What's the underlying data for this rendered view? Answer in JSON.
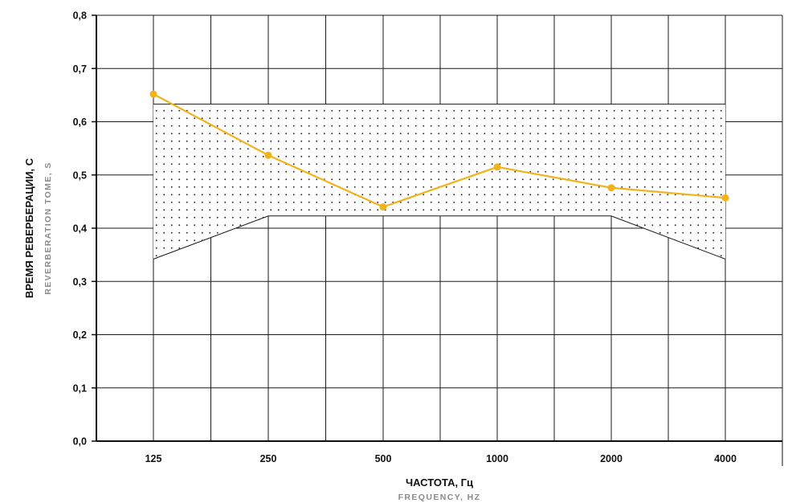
{
  "chart_data": {
    "type": "line",
    "categories": [
      "125",
      "250",
      "500",
      "1000",
      "2000",
      "4000"
    ],
    "y_tick_labels": [
      "0,0",
      "0,1",
      "0,2",
      "0,3",
      "0,4",
      "0,5",
      "0,6",
      "0,7",
      "0,8"
    ],
    "ylim": [
      0,
      0.8
    ],
    "grid": true,
    "series": [
      {
        "values": [
          0.652,
          0.537,
          0.44,
          0.515,
          0.476,
          0.457
        ],
        "color": "#f2b21a"
      }
    ],
    "tolerance_band": {
      "upper": [
        0.633,
        0.633,
        0.633,
        0.633,
        0.633,
        0.633
      ],
      "lower": [
        0.342,
        0.423,
        0.423,
        0.423,
        0.423,
        0.342
      ],
      "pattern": "dots"
    },
    "ylabel": "ВРЕМЯ РЕВЕРБЕРАЦИИ, С",
    "ylabel_sub": "REVERBERATION TOME, S",
    "xlabel": "ЧАСТОТА, Гц",
    "xlabel_sub": "FREQUENCY, HZ"
  }
}
